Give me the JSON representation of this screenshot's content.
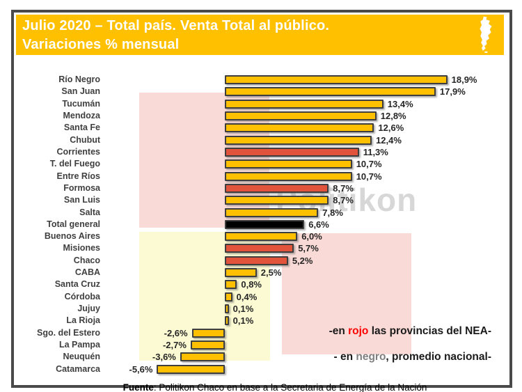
{
  "header": {
    "title_line1": "Julio 2020 – Total país. Venta Total al público.",
    "title_line2": "Variaciones % mensual",
    "map_icon": "argentina-map-icon"
  },
  "chart_data": {
    "type": "bar",
    "orientation": "horizontal",
    "title": "Julio 2020 – Total país. Venta Total al público. Variaciones % mensual",
    "xlabel": "",
    "ylabel": "",
    "value_suffix": "%",
    "xlim": [
      -6,
      20
    ],
    "grid": false,
    "legend": "none",
    "categories": [
      "Río Negro",
      "San Juan",
      "Tucumán",
      "Mendoza",
      "Santa Fe",
      "Chubut",
      "Corrientes",
      "T. del Fuego",
      "Entre Ríos",
      "Formosa",
      "San Luis",
      "Salta",
      "Total general",
      "Buenos Aires",
      "Misiones",
      "Chaco",
      "CABA",
      "Santa Cruz",
      "Córdoba",
      "Jujuy",
      "La Rioja",
      "Sgo. del Estero",
      "La Pampa",
      "Neuquén",
      "Catamarca"
    ],
    "values": [
      18.9,
      17.9,
      13.4,
      12.8,
      12.6,
      12.4,
      11.3,
      10.7,
      10.7,
      8.7,
      8.7,
      7.8,
      6.6,
      6.0,
      5.7,
      5.2,
      2.5,
      0.8,
      0.4,
      0.1,
      0.1,
      -2.6,
      -2.7,
      -3.6,
      -5.6
    ],
    "value_labels": [
      "18,9%",
      "17,9%",
      "13,4%",
      "12,8%",
      "12,6%",
      "12,4%",
      "11,3%",
      "10,7%",
      "10,7%",
      "8,7%",
      "8,7%",
      "7,8%",
      "6,6%",
      "6,0%",
      "5,7%",
      "5,2%",
      "2,5%",
      "0,8%",
      "0,4%",
      "0,1%",
      "0,1%",
      "-2,6%",
      "-2,7%",
      "-3,6%",
      "-5,6%"
    ],
    "bar_color_keys": [
      "default",
      "default",
      "default",
      "default",
      "default",
      "default",
      "nea",
      "default",
      "default",
      "nea",
      "default",
      "default",
      "total",
      "default",
      "nea",
      "nea",
      "default",
      "default",
      "default",
      "default",
      "default",
      "default",
      "default",
      "default",
      "default"
    ]
  },
  "colors": {
    "header_bg": "#FFC000",
    "bar_default": "#FFC000",
    "bar_nea": "#E2533C",
    "bar_total": "#000000",
    "bg_pink": "#F9DAD6",
    "bg_yellow": "#FBFAD2",
    "annotation_red_word": "#FF0000",
    "annotation_gray_word": "#7F7F7F",
    "frame_border": "#4a4a4a"
  },
  "watermark": "Politikon",
  "annotations": [
    {
      "name": "annotation-nea",
      "parts": [
        {
          "text": "-en ",
          "color": "#1a1a1a"
        },
        {
          "text": "rojo",
          "color": "#FF0000"
        },
        {
          "text": " las provincias del NEA-",
          "color": "#1a1a1a"
        }
      ]
    },
    {
      "name": "annotation-black",
      "parts": [
        {
          "text": "- en ",
          "color": "#1a1a1a"
        },
        {
          "text": "negro",
          "color": "#7F7F7F"
        },
        {
          "text": ", promedio nacional-",
          "color": "#1a1a1a"
        }
      ]
    }
  ],
  "footer": {
    "source_label": "Fuente",
    "source_rest": ": Politikon Chaco en base a la Secretaria de Energía de la Nación"
  }
}
